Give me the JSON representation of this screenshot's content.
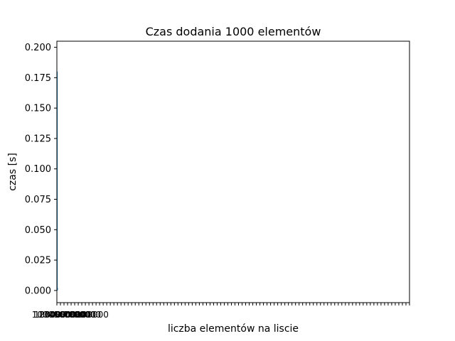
{
  "chart_data": {
    "type": "line",
    "title": "Czas dodania 1000 elementów",
    "xlabel": "liczba elementów na liscie",
    "ylabel": "czas [s]",
    "yticks": [
      "0.000",
      "0.025",
      "0.050",
      "0.075",
      "0.100",
      "0.125",
      "0.150",
      "0.175",
      "0.200"
    ],
    "ylim": [
      -0.01,
      0.205
    ],
    "xtick_count": 100,
    "xlabels_visible": [
      "1000",
      "10000",
      "20000",
      "30000",
      "40000",
      "50000",
      "60000",
      "70000",
      "80000",
      "90000",
      "100000"
    ],
    "series": [
      {
        "values": [
          0.0,
          0.001,
          0.0005,
          0.0012,
          0.0008,
          0.0015,
          0.002
        ]
      }
    ],
    "grid": false,
    "colors": {
      "series": "#1f77b4",
      "axes": "#000000",
      "background": "#ffffff"
    }
  }
}
